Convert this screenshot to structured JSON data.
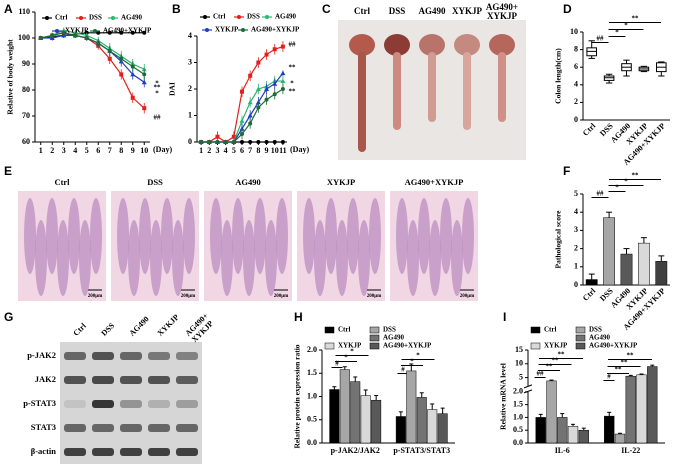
{
  "chart_data": [
    {
      "panel": "A",
      "type": "line",
      "ylabel": "Relative of body weight",
      "xlabel": "(Day)",
      "x": [
        1,
        2,
        3,
        4,
        5,
        6,
        7,
        8,
        9,
        10
      ],
      "xlim": [
        0.5,
        10.5
      ],
      "xticks": [
        1,
        2,
        3,
        4,
        5,
        6,
        7,
        8,
        9,
        10
      ],
      "ylim": [
        60,
        110
      ],
      "yticks": [
        60,
        70,
        80,
        90,
        100,
        110
      ],
      "series": [
        {
          "name": "Ctrl",
          "color": "#000000",
          "values": [
            100,
            100.5,
            101,
            101.5,
            102,
            102,
            102,
            102,
            102,
            102
          ],
          "errors": [
            0.5,
            0.5,
            0.5,
            0.5,
            0.5,
            0.5,
            0.5,
            0.5,
            0.5,
            0.5
          ]
        },
        {
          "name": "DSS",
          "color": "#e0201b",
          "values": [
            100,
            101,
            102,
            101,
            100,
            97,
            92,
            86,
            77,
            73
          ],
          "errors": [
            0.5,
            1,
            1,
            1,
            1,
            1.5,
            2,
            2,
            2,
            2
          ]
        },
        {
          "name": "AG490",
          "color": "#2bb673",
          "values": [
            100,
            101,
            103,
            102,
            101,
            99,
            96,
            93,
            90,
            88
          ],
          "errors": [
            0.5,
            1,
            1,
            1,
            1,
            1.5,
            2,
            2,
            2,
            2
          ]
        },
        {
          "name": "XYKJP",
          "color": "#1f3fbf",
          "values": [
            100,
            100,
            101,
            101,
            100,
            98,
            95,
            91,
            86,
            83
          ],
          "errors": [
            0.5,
            1,
            1,
            1,
            1,
            1.5,
            2,
            2,
            2,
            2
          ]
        },
        {
          "name": "AG490+XYKJP",
          "color": "#1e6b3a",
          "values": [
            100,
            101,
            102,
            101,
            100,
            98,
            95,
            92,
            89,
            86
          ],
          "errors": [
            0.5,
            1,
            1,
            1,
            1,
            1.5,
            2,
            2,
            2,
            2
          ]
        }
      ],
      "annotations": [
        "**",
        "*",
        "*",
        "##"
      ]
    },
    {
      "panel": "B",
      "type": "line",
      "ylabel": "DAI",
      "xlabel": "(Day)",
      "x": [
        1,
        2,
        3,
        4,
        5,
        6,
        7,
        8,
        9,
        10,
        11
      ],
      "xlim": [
        0.5,
        11.5
      ],
      "xticks": [
        1,
        2,
        3,
        4,
        5,
        6,
        7,
        8,
        9,
        10,
        11
      ],
      "ylim": [
        0,
        4
      ],
      "yticks": [
        0,
        1,
        2,
        3,
        4
      ],
      "series": [
        {
          "name": "Ctrl",
          "color": "#000000",
          "values": [
            0,
            0,
            0,
            0,
            0,
            0,
            0,
            0,
            0,
            0,
            0
          ],
          "errors": [
            0,
            0,
            0,
            0,
            0,
            0,
            0,
            0,
            0,
            0,
            0
          ]
        },
        {
          "name": "DSS",
          "color": "#e0201b",
          "values": [
            0,
            0,
            0.2,
            0,
            0.2,
            1.9,
            2.5,
            3.0,
            3.3,
            3.5,
            3.6
          ],
          "errors": [
            0,
            0,
            0.2,
            0,
            0.2,
            0.2,
            0.2,
            0.2,
            0.2,
            0.2,
            0.2
          ]
        },
        {
          "name": "AG490",
          "color": "#2bb673",
          "values": [
            0,
            0,
            0,
            0,
            0,
            0.8,
            1.5,
            2.0,
            2.1,
            2.3,
            2.3
          ],
          "errors": [
            0,
            0,
            0,
            0,
            0,
            0.2,
            0.2,
            0.2,
            0.2,
            0.2,
            0.2
          ]
        },
        {
          "name": "XYKJP",
          "color": "#1f3fbf",
          "values": [
            0,
            0,
            0,
            0,
            0,
            0.5,
            1.0,
            1.5,
            2.0,
            2.2,
            2.6
          ],
          "errors": [
            0,
            0,
            0,
            0,
            0,
            0.2,
            0.2,
            0.2,
            0.2,
            0.2,
            0.1
          ]
        },
        {
          "name": "AG490+XYKJP",
          "color": "#1e6b3a",
          "values": [
            0,
            0,
            0,
            0,
            0,
            0.3,
            0.7,
            1.3,
            1.6,
            1.8,
            2.0
          ],
          "errors": [
            0,
            0,
            0,
            0,
            0,
            0.2,
            0.2,
            0.2,
            0.2,
            0.2,
            0.2
          ]
        }
      ],
      "annotations": [
        "##",
        "**",
        "*",
        "**"
      ]
    },
    {
      "panel": "D",
      "type": "box",
      "ylabel": "Colon length(cm)",
      "categories": [
        "Ctrl",
        "DSS",
        "AG490",
        "XYKJP",
        "AG490+XYKJP"
      ],
      "ylim": [
        0,
        10
      ],
      "yticks": [
        0,
        2,
        4,
        6,
        8,
        10
      ],
      "boxes": [
        {
          "min": 7.0,
          "q1": 7.3,
          "median": 7.8,
          "q3": 8.2,
          "max": 9.0
        },
        {
          "min": 4.2,
          "q1": 4.5,
          "median": 4.8,
          "q3": 5.0,
          "max": 5.2
        },
        {
          "min": 5.0,
          "q1": 5.6,
          "median": 6.0,
          "q3": 6.4,
          "max": 6.8
        },
        {
          "min": 5.5,
          "q1": 5.6,
          "median": 5.8,
          "q3": 6.0,
          "max": 6.1
        },
        {
          "min": 5.0,
          "q1": 5.5,
          "median": 6.0,
          "q3": 6.5,
          "max": 6.6
        }
      ],
      "annotations": [
        "**",
        "*",
        "*",
        "##"
      ]
    },
    {
      "panel": "F",
      "type": "bar",
      "ylabel": "Pathological score",
      "categories": [
        "Ctrl",
        "DSS",
        "AG490",
        "XYKJP",
        "AG490+XYKJP"
      ],
      "ylim": [
        0,
        5
      ],
      "yticks": [
        0,
        1,
        2,
        3,
        4,
        5
      ],
      "values": [
        0.3,
        3.7,
        1.7,
        2.3,
        1.3
      ],
      "errors": [
        0.3,
        0.3,
        0.3,
        0.3,
        0.3
      ],
      "colors": [
        "#000000",
        "#a6a6a6",
        "#595959",
        "#d9d9d9",
        "#404040"
      ],
      "annotations": [
        "**",
        "*",
        "*",
        "##"
      ]
    },
    {
      "panel": "H",
      "type": "bar",
      "ylabel": "Relative protein expression ratio",
      "categories": [
        "p-JAK2/JAK2",
        "p-STAT3/STAT3"
      ],
      "ylim": [
        0,
        2
      ],
      "yticks": [
        {
          "value": 0,
          "label": "0.0"
        },
        0.5,
        {
          "value": 1,
          "label": "1.0"
        },
        1.5,
        {
          "value": 2,
          "label": "2.0"
        }
      ],
      "series": [
        {
          "name": "Ctrl",
          "color": "#000000",
          "values": [
            1.15,
            0.57
          ],
          "errors": [
            0.06,
            0.1
          ]
        },
        {
          "name": "DSS",
          "color": "#a6a6a6",
          "values": [
            1.58,
            1.55
          ],
          "errors": [
            0.06,
            0.15
          ]
        },
        {
          "name": "AG490",
          "color": "#737373",
          "values": [
            1.32,
            0.98
          ],
          "errors": [
            0.1,
            0.1
          ]
        },
        {
          "name": "XYKJP",
          "color": "#d9d9d9",
          "values": [
            1.02,
            0.72
          ],
          "errors": [
            0.12,
            0.12
          ]
        },
        {
          "name": "AG490+XYKJP",
          "color": "#595959",
          "values": [
            0.92,
            0.63
          ],
          "errors": [
            0.1,
            0.12
          ]
        }
      ],
      "annotations": [
        "#",
        "*",
        "*",
        "#",
        "*",
        "*"
      ]
    },
    {
      "panel": "I",
      "type": "bar",
      "ylabel": "Relative mRNA level",
      "categories": [
        "IL-6",
        "IL-22"
      ],
      "ylim_lower": [
        0,
        2
      ],
      "ylim_upper": [
        2,
        15
      ],
      "yticks": [
        {
          "value": 0,
          "label": "0.0"
        },
        0.5,
        {
          "value": 1,
          "label": "1.0"
        },
        1.5,
        {
          "value": 2,
          "label": "2.0"
        },
        5,
        10,
        15
      ],
      "series": [
        {
          "name": "Ctrl",
          "color": "#000000",
          "values": [
            1.0,
            1.05
          ],
          "errors": [
            0.12,
            0.15
          ]
        },
        {
          "name": "DSS",
          "color": "#a6a6a6",
          "values": [
            3.8,
            0.35
          ],
          "errors": [
            0.3,
            0.03
          ]
        },
        {
          "name": "AG490",
          "color": "#737373",
          "values": [
            1.0,
            5.5
          ],
          "errors": [
            0.15,
            0.3
          ]
        },
        {
          "name": "XYKJP",
          "color": "#d9d9d9",
          "values": [
            0.65,
            6.0
          ],
          "errors": [
            0.08,
            0.3
          ]
        },
        {
          "name": "AG490+XYKJP",
          "color": "#595959",
          "values": [
            0.5,
            9.0
          ],
          "errors": [
            0.08,
            0.5
          ]
        }
      ],
      "annotations": [
        "##",
        "**",
        "**",
        "**",
        "#",
        "**",
        "**",
        "**"
      ]
    }
  ],
  "colon_photo": {
    "panel": "C",
    "labels": [
      "Ctrl",
      "DSS",
      "AG490",
      "XYKJP",
      "AG490+\nXYKJP"
    ]
  },
  "histology": {
    "panel": "E",
    "labels": [
      "Ctrl",
      "DSS",
      "AG490",
      "XYKJP",
      "AG490+XYKJP"
    ],
    "scale_bar": "200μm"
  },
  "western_blot": {
    "panel": "G",
    "lanes": [
      "Ctrl",
      "DSS",
      "AG490",
      "XYKJP",
      "AG490+\nXYKJP"
    ],
    "proteins": [
      "p-JAK2",
      "JAK2",
      "p-STAT3",
      "STAT3",
      "β-actin"
    ]
  }
}
